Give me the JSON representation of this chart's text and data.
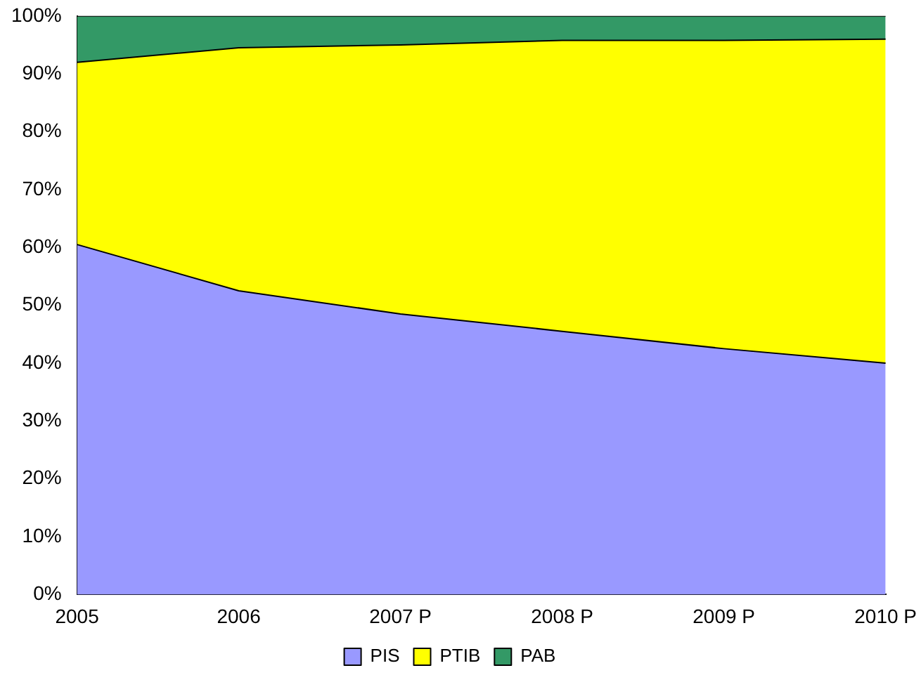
{
  "chart_data": {
    "type": "area",
    "stacked": true,
    "categories": [
      "2005",
      "2006",
      "2007 P",
      "2008 P",
      "2009 P",
      "2010 P"
    ],
    "series": [
      {
        "name": "PIS",
        "color": "#9999ff",
        "values": [
          60.5,
          52.5,
          48.5,
          45.5,
          42.5,
          40
        ]
      },
      {
        "name": "PTIB",
        "color": "#ffff00",
        "values": [
          31.5,
          42,
          46.5,
          50.3,
          53.3,
          56
        ]
      },
      {
        "name": "PAB",
        "color": "#339966",
        "values": [
          8,
          5.5,
          5,
          4.2,
          4.2,
          4
        ]
      }
    ],
    "ylim": [
      0,
      100
    ],
    "yticks": [
      {
        "value": 0,
        "label": "0%"
      },
      {
        "value": 10,
        "label": "10%"
      },
      {
        "value": 20,
        "label": "20%"
      },
      {
        "value": 30,
        "label": "30%"
      },
      {
        "value": 40,
        "label": "40%"
      },
      {
        "value": 50,
        "label": "50%"
      },
      {
        "value": 60,
        "label": "60%"
      },
      {
        "value": 70,
        "label": "70%"
      },
      {
        "value": 80,
        "label": "80%"
      },
      {
        "value": 90,
        "label": "90%"
      },
      {
        "value": 100,
        "label": "100%"
      }
    ],
    "grid": false,
    "legend": "bottom"
  }
}
